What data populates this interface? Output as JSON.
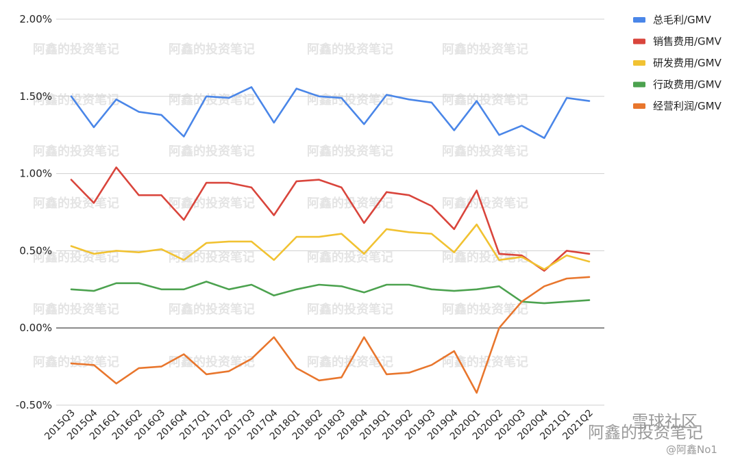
{
  "chart_data": {
    "type": "line",
    "categories": [
      "2015Q3",
      "2015Q4",
      "2016Q1",
      "2016Q2",
      "2016Q3",
      "2016Q4",
      "2017Q1",
      "2017Q2",
      "2017Q3",
      "2017Q4",
      "2018Q1",
      "2018Q2",
      "2018Q3",
      "2018Q4",
      "2019Q1",
      "2019Q2",
      "2019Q3",
      "2019Q4",
      "2020Q1",
      "2020Q2",
      "2020Q3",
      "2020Q4",
      "2021Q1",
      "2021Q2"
    ],
    "y_ticks": [
      "-0.50%",
      "0.00%",
      "0.50%",
      "1.00%",
      "1.50%",
      "2.00%"
    ],
    "y_tick_values": [
      -0.5,
      0,
      0.5,
      1.0,
      1.5,
      2.0
    ],
    "ylim": [
      -0.5,
      2.0
    ],
    "grid": true,
    "legend_position": "top-right",
    "series": [
      {
        "name": "总毛利/GMV",
        "color": "#4a86e8",
        "values": [
          1.5,
          1.3,
          1.48,
          1.4,
          1.38,
          1.24,
          1.5,
          1.49,
          1.56,
          1.33,
          1.55,
          1.5,
          1.49,
          1.32,
          1.51,
          1.48,
          1.46,
          1.28,
          1.47,
          1.25,
          1.31,
          1.23,
          1.49,
          1.47
        ]
      },
      {
        "name": "销售费用/GMV",
        "color": "#d9453c",
        "values": [
          0.96,
          0.81,
          1.04,
          0.86,
          0.86,
          0.7,
          0.94,
          0.94,
          0.91,
          0.73,
          0.95,
          0.96,
          0.91,
          0.68,
          0.88,
          0.86,
          0.79,
          0.64,
          0.89,
          0.48,
          0.47,
          0.37,
          0.5,
          0.48
        ]
      },
      {
        "name": "研发费用/GMV",
        "color": "#f1c232",
        "values": [
          0.53,
          0.48,
          0.5,
          0.49,
          0.51,
          0.44,
          0.55,
          0.56,
          0.56,
          0.44,
          0.59,
          0.59,
          0.61,
          0.48,
          0.64,
          0.62,
          0.61,
          0.49,
          0.67,
          0.44,
          0.46,
          0.38,
          0.47,
          0.43
        ]
      },
      {
        "name": "行政费用/GMV",
        "color": "#4ca24f",
        "values": [
          0.25,
          0.24,
          0.29,
          0.29,
          0.25,
          0.25,
          0.3,
          0.25,
          0.28,
          0.21,
          0.25,
          0.28,
          0.27,
          0.23,
          0.28,
          0.28,
          0.25,
          0.24,
          0.25,
          0.27,
          0.17,
          0.16,
          0.17,
          0.18
        ]
      },
      {
        "name": "经营利润/GMV",
        "color": "#e8762d",
        "values": [
          -0.23,
          -0.24,
          -0.36,
          -0.26,
          -0.25,
          -0.17,
          -0.3,
          -0.28,
          -0.2,
          -0.06,
          -0.26,
          -0.34,
          -0.32,
          -0.06,
          -0.3,
          -0.29,
          -0.24,
          -0.15,
          -0.42,
          0.0,
          0.17,
          0.27,
          0.32,
          0.33
        ]
      }
    ],
    "watermark": "阿鑫的投资笔记",
    "branding": {
      "top": "雪球社区",
      "main": "阿鑫的投资笔记",
      "handle": "@阿鑫No1"
    }
  }
}
